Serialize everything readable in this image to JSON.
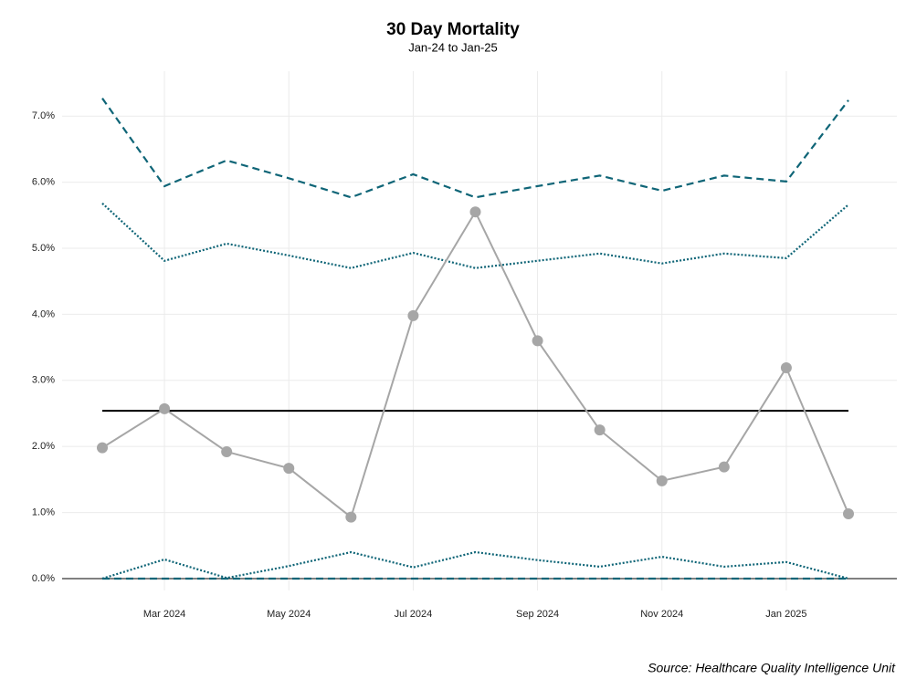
{
  "chart_data": {
    "type": "line",
    "title": "30 Day Mortality",
    "subtitle": "Jan-24 to Jan-25",
    "caption": "Source: Healthcare Quality Intelligence Unit",
    "x": [
      "2024-02",
      "2024-03",
      "2024-04",
      "2024-05",
      "2024-06",
      "2024-07",
      "2024-08",
      "2024-09",
      "2024-10",
      "2024-11",
      "2024-12",
      "2025-01",
      "2025-02"
    ],
    "series": [
      {
        "color": "#0f6577",
        "dash": "dashed",
        "values": [
          7.27,
          5.94,
          6.33,
          6.06,
          5.77,
          6.12,
          5.77,
          5.94,
          6.1,
          5.87,
          6.1,
          6.01,
          7.24
        ]
      },
      {
        "color": "#0f6577",
        "dash": "dotted",
        "values": [
          5.68,
          4.81,
          5.07,
          4.89,
          4.7,
          4.93,
          4.7,
          4.81,
          4.92,
          4.77,
          4.92,
          4.85,
          5.66
        ]
      },
      {
        "color": "#0f6577",
        "dash": "dotted",
        "values": [
          0,
          0.29,
          0.01,
          0.19,
          0.4,
          0.17,
          0.4,
          0.28,
          0.18,
          0.33,
          0.18,
          0.25,
          0
        ]
      },
      {
        "color": "#0f6577",
        "dash": "dashed",
        "values": [
          0,
          0,
          0,
          0,
          0,
          0,
          0,
          0,
          0,
          0,
          0,
          0,
          0
        ]
      },
      {
        "color": "#000000",
        "dash": "solid",
        "values": [
          2.54,
          2.54,
          2.54,
          2.54,
          2.54,
          2.54,
          2.54,
          2.54,
          2.54,
          2.54,
          2.54,
          2.54,
          2.54
        ]
      },
      {
        "color": "#a6a6a6",
        "dash": "solid",
        "markers": true,
        "values": [
          1.98,
          2.57,
          1.92,
          1.67,
          0.93,
          3.98,
          5.55,
          3.6,
          2.25,
          1.48,
          1.69,
          3.19,
          0.98
        ]
      }
    ],
    "ylim": [
      -0.18,
      7.68
    ],
    "yticks": [
      {
        "value": 0,
        "label": "0.0%"
      },
      {
        "value": 1,
        "label": "1.0%"
      },
      {
        "value": 2,
        "label": "2.0%"
      },
      {
        "value": 3,
        "label": "3.0%"
      },
      {
        "value": 4,
        "label": "4.0%"
      },
      {
        "value": 5,
        "label": "5.0%"
      },
      {
        "value": 6,
        "label": "6.0%"
      },
      {
        "value": 7,
        "label": "7.0%"
      }
    ],
    "xticks": [
      {
        "value": "2024-03",
        "label": "Mar 2024"
      },
      {
        "value": "2024-05",
        "label": "May 2024"
      },
      {
        "value": "2024-07",
        "label": "Jul 2024"
      },
      {
        "value": "2024-09",
        "label": "Sep 2024"
      },
      {
        "value": "2024-11",
        "label": "Nov 2024"
      },
      {
        "value": "2025-01",
        "label": "Jan 2025"
      }
    ],
    "grid": true
  }
}
